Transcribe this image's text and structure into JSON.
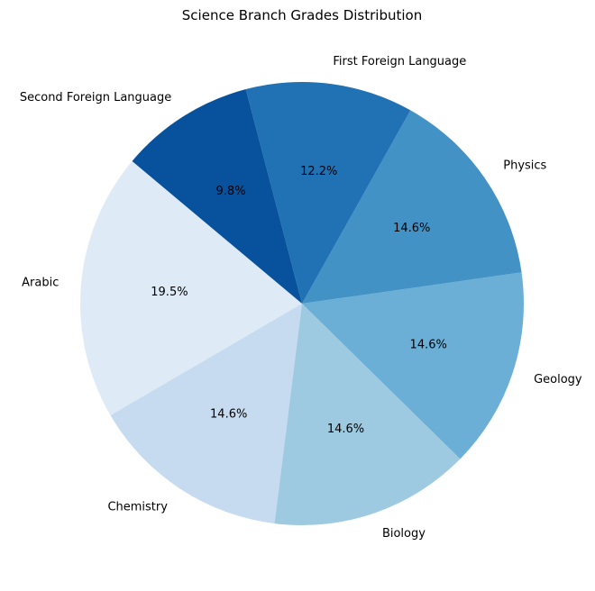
{
  "chart_data": {
    "type": "pie",
    "title": "Science Branch Grades Distribution",
    "start_angle_deg": 140,
    "direction": "counterclockwise",
    "slices": [
      {
        "label": "Arabic",
        "value": 19.5,
        "pct_label": "19.5%",
        "color": "#deebf7"
      },
      {
        "label": "Chemistry",
        "value": 14.6,
        "pct_label": "14.6%",
        "color": "#c6dbef"
      },
      {
        "label": "Biology",
        "value": 14.6,
        "pct_label": "14.6%",
        "color": "#9ecae1"
      },
      {
        "label": "Geology",
        "value": 14.6,
        "pct_label": "14.6%",
        "color": "#6baed6"
      },
      {
        "label": "Physics",
        "value": 14.6,
        "pct_label": "14.6%",
        "color": "#4292c6"
      },
      {
        "label": "First Foreign Language",
        "value": 12.2,
        "pct_label": "12.2%",
        "color": "#2171b5"
      },
      {
        "label": "Second Foreign Language",
        "value": 9.8,
        "pct_label": "9.8%",
        "color": "#08519c"
      }
    ]
  }
}
